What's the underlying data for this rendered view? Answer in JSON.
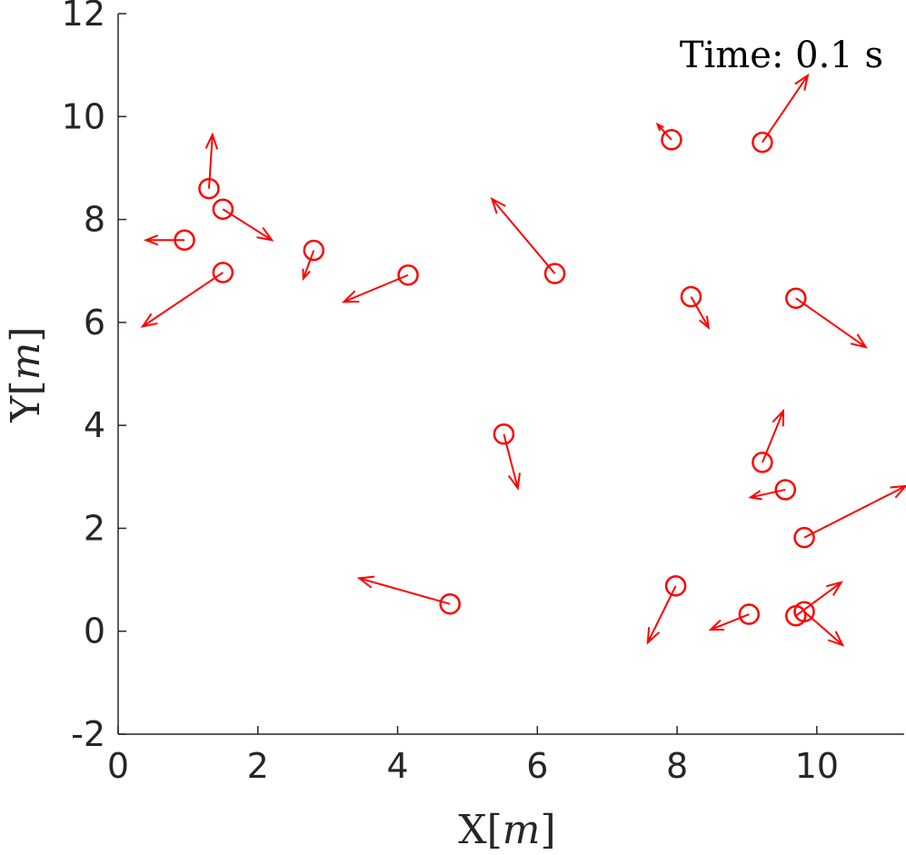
{
  "chart_data": {
    "type": "scatter",
    "title": "",
    "xlabel_text": "X",
    "xlabel_unit": "m",
    "ylabel_text": "Y",
    "ylabel_unit": "m",
    "xlim": [
      0,
      11.25
    ],
    "ylim": [
      -2,
      12
    ],
    "xticks": [
      0,
      2,
      4,
      6,
      8,
      10
    ],
    "yticks": [
      -2,
      0,
      2,
      4,
      6,
      8,
      10,
      12
    ],
    "grid": false,
    "annotation": "Time: 0.1 s",
    "marker": "circle",
    "color": "#ff0000",
    "points": [
      {
        "x": 1.3,
        "y": 8.6,
        "u": 0.05,
        "v": 1.05
      },
      {
        "x": 1.5,
        "y": 8.2,
        "u": 0.7,
        "v": -0.6
      },
      {
        "x": 0.95,
        "y": 7.6,
        "u": -0.55,
        "v": 0.0
      },
      {
        "x": 1.5,
        "y": 6.97,
        "u": -1.15,
        "v": -1.05
      },
      {
        "x": 2.8,
        "y": 7.4,
        "u": -0.15,
        "v": -0.55
      },
      {
        "x": 4.15,
        "y": 6.92,
        "u": -0.92,
        "v": -0.52
      },
      {
        "x": 6.25,
        "y": 6.95,
        "u": -0.9,
        "v": 1.45
      },
      {
        "x": 7.92,
        "y": 9.55,
        "u": -0.2,
        "v": 0.3
      },
      {
        "x": 9.22,
        "y": 9.5,
        "u": 0.65,
        "v": 1.3
      },
      {
        "x": 8.2,
        "y": 6.5,
        "u": 0.25,
        "v": -0.6
      },
      {
        "x": 9.7,
        "y": 6.47,
        "u": 1.0,
        "v": -0.95
      },
      {
        "x": 5.52,
        "y": 3.83,
        "u": 0.2,
        "v": -1.05
      },
      {
        "x": 9.22,
        "y": 3.28,
        "u": 0.3,
        "v": 1.0
      },
      {
        "x": 9.55,
        "y": 2.75,
        "u": -0.5,
        "v": -0.15
      },
      {
        "x": 9.82,
        "y": 1.82,
        "u": 1.45,
        "v": 1.0
      },
      {
        "x": 4.75,
        "y": 0.53,
        "u": -1.3,
        "v": 0.5
      },
      {
        "x": 7.98,
        "y": 0.88,
        "u": -0.4,
        "v": -1.1
      },
      {
        "x": 9.03,
        "y": 0.33,
        "u": -0.55,
        "v": -0.3
      },
      {
        "x": 9.7,
        "y": 0.3,
        "u": 0.65,
        "v": 0.65
      },
      {
        "x": 9.82,
        "y": 0.38,
        "u": 0.55,
        "v": -0.65
      }
    ]
  }
}
